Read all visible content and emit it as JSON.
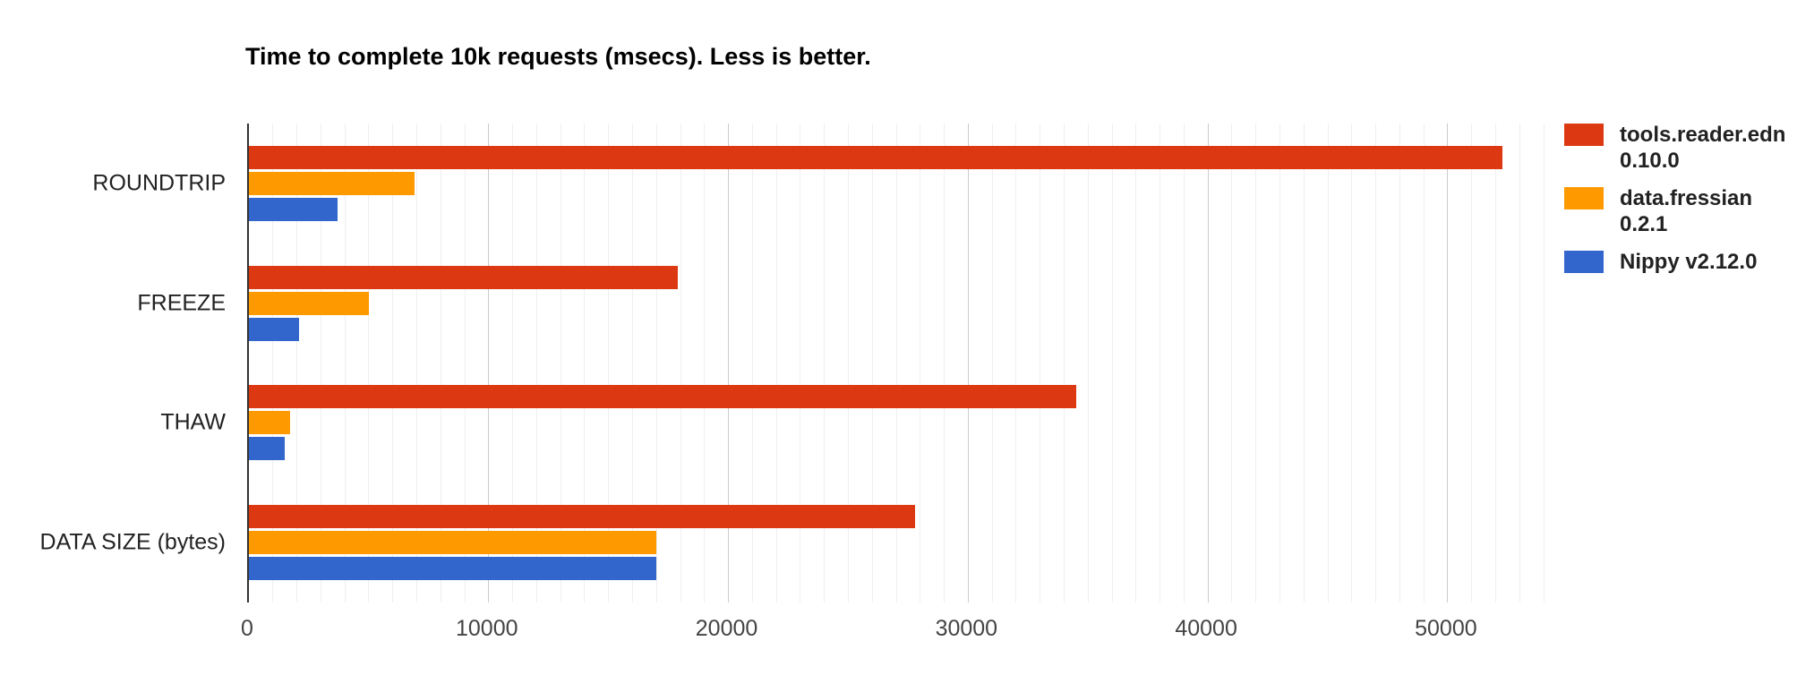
{
  "chart_data": {
    "type": "bar",
    "orientation": "horizontal",
    "title": "Time to complete 10k requests (msecs). Less is better.",
    "categories": [
      "ROUNDTRIP",
      "FREEZE",
      "THAW",
      "DATA SIZE (bytes)"
    ],
    "series": [
      {
        "name": "tools.reader.edn 0.10.0",
        "label_lines": [
          "tools.reader.edn",
          "0.10.0"
        ],
        "color": "#DC3912",
        "values": [
          52300,
          17900,
          34500,
          27800
        ]
      },
      {
        "name": "data.fressian 0.2.1",
        "label_lines": [
          "data.fressian",
          "0.2.1"
        ],
        "color": "#FF9900",
        "values": [
          6900,
          5000,
          1700,
          17000
        ]
      },
      {
        "name": "Nippy v2.12.0",
        "label_lines": [
          "Nippy v2.12.0"
        ],
        "color": "#3366CC",
        "values": [
          3700,
          2100,
          1500,
          17000
        ]
      }
    ],
    "xlim": [
      0,
      54000
    ],
    "x_ticks": [
      "0",
      "10000",
      "20000",
      "30000",
      "40000",
      "50000"
    ],
    "x_tick_values": [
      0,
      10000,
      20000,
      30000,
      40000,
      50000
    ],
    "grid": {
      "minor_step": 1000,
      "major_step": 10000,
      "minor_color": "#efefef",
      "major_color": "#cccccc"
    },
    "legend_position": "right",
    "axis_color": "#333333",
    "background": "#ffffff"
  }
}
